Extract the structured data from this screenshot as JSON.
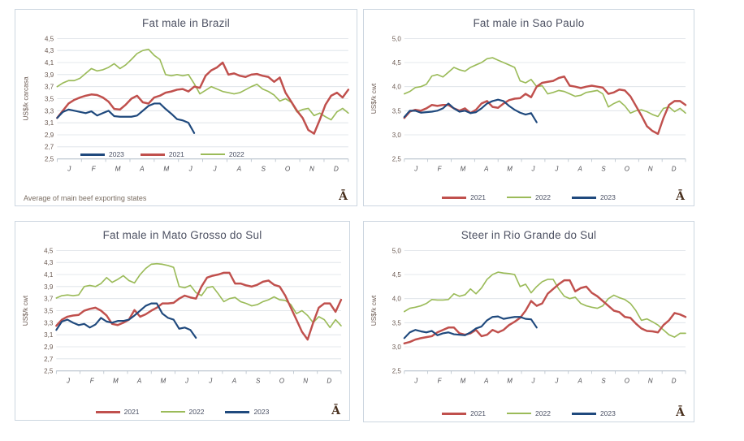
{
  "palette": {
    "2021": "#C0504D",
    "2022": "#9BBB59",
    "2023": "#1F497D"
  },
  "grid_color": "#dbe0e6",
  "axis_color": "#b7c1cb",
  "chart_data": [
    {
      "type": "line",
      "title": "Fat male in Brazil",
      "ylabel": "US$/k carcasa",
      "note": "Average  of main beef exporting states",
      "logo": "Ā",
      "months": [
        "J",
        "F",
        "M",
        "A",
        "M",
        "J",
        "J",
        "A",
        "S",
        "O",
        "N",
        "D"
      ],
      "ylim": [
        2.5,
        4.5
      ],
      "ytick_values": [
        2.5,
        2.7,
        2.9,
        3.1,
        3.3,
        3.5,
        3.7,
        3.9,
        4.1,
        4.3,
        4.5
      ],
      "ytick_labels": [
        "2,5",
        "2,7",
        "2,9",
        "3,1",
        "3,3",
        "3,5",
        "3,7",
        "3,9",
        "4,1",
        "4,3",
        "4,5"
      ],
      "legend": [
        "2023",
        "2021",
        "2022"
      ],
      "legend_position": "inside-bottom",
      "x_count": 52,
      "series": [
        {
          "name": "2022",
          "values": [
            3.7,
            3.76,
            3.8,
            3.8,
            3.84,
            3.92,
            4.0,
            3.96,
            3.98,
            4.02,
            4.08,
            4.0,
            4.06,
            4.15,
            4.25,
            4.3,
            4.32,
            4.22,
            4.15,
            3.9,
            3.88,
            3.9,
            3.88,
            3.9,
            3.75,
            3.58,
            3.64,
            3.7,
            3.66,
            3.62,
            3.6,
            3.58,
            3.6,
            3.65,
            3.7,
            3.74,
            3.66,
            3.62,
            3.56,
            3.46,
            3.5,
            3.44,
            3.28,
            3.32,
            3.34,
            3.22,
            3.26,
            3.2,
            3.15,
            3.28,
            3.34,
            3.26
          ]
        },
        {
          "name": "2021",
          "values": [
            3.18,
            3.3,
            3.42,
            3.48,
            3.52,
            3.55,
            3.57,
            3.56,
            3.52,
            3.45,
            3.33,
            3.32,
            3.4,
            3.5,
            3.55,
            3.44,
            3.42,
            3.52,
            3.55,
            3.6,
            3.62,
            3.65,
            3.66,
            3.62,
            3.7,
            3.68,
            3.88,
            3.97,
            4.02,
            4.1,
            3.9,
            3.92,
            3.88,
            3.86,
            3.9,
            3.91,
            3.88,
            3.86,
            3.78,
            3.85,
            3.6,
            3.45,
            3.3,
            3.18,
            2.98,
            2.92,
            3.15,
            3.4,
            3.55,
            3.6,
            3.52,
            3.65
          ]
        },
        {
          "name": "2023",
          "values": [
            3.18,
            3.28,
            3.32,
            3.3,
            3.28,
            3.26,
            3.29,
            3.22,
            3.26,
            3.3,
            3.21,
            3.2,
            3.2,
            3.2,
            3.22,
            3.3,
            3.38,
            3.42,
            3.42,
            3.33,
            3.25,
            3.16,
            3.14,
            3.1,
            2.93
          ]
        }
      ]
    },
    {
      "type": "line",
      "title": "Fat male in Sao Paulo",
      "ylabel": "US$/k cwt",
      "logo": "Ā",
      "months": [
        "J",
        "F",
        "M",
        "A",
        "M",
        "J",
        "J",
        "A",
        "S",
        "O",
        "N",
        "D"
      ],
      "ylim": [
        2.5,
        5.0
      ],
      "ytick_values": [
        2.5,
        3.0,
        3.5,
        4.0,
        4.5,
        5.0
      ],
      "ytick_labels": [
        "2,5",
        "3,0",
        "3,5",
        "4,0",
        "4,5",
        "5,0"
      ],
      "legend": [
        "2021",
        "2022",
        "2023"
      ],
      "legend_position": "below",
      "x_count": 52,
      "series": [
        {
          "name": "2022",
          "values": [
            3.85,
            3.9,
            3.98,
            4.0,
            4.05,
            4.22,
            4.25,
            4.2,
            4.3,
            4.4,
            4.35,
            4.32,
            4.4,
            4.45,
            4.5,
            4.58,
            4.6,
            4.55,
            4.5,
            4.45,
            4.4,
            4.12,
            4.08,
            4.15,
            4.0,
            4.02,
            3.85,
            3.88,
            3.92,
            3.9,
            3.85,
            3.8,
            3.82,
            3.88,
            3.9,
            3.92,
            3.85,
            3.58,
            3.65,
            3.7,
            3.6,
            3.45,
            3.5,
            3.52,
            3.48,
            3.42,
            3.38,
            3.55,
            3.58,
            3.48,
            3.55,
            3.45
          ]
        },
        {
          "name": "2021",
          "values": [
            3.35,
            3.48,
            3.52,
            3.5,
            3.55,
            3.62,
            3.6,
            3.62,
            3.62,
            3.55,
            3.5,
            3.55,
            3.45,
            3.52,
            3.65,
            3.7,
            3.58,
            3.56,
            3.65,
            3.72,
            3.75,
            3.76,
            3.85,
            3.78,
            4.0,
            4.08,
            4.1,
            4.12,
            4.18,
            4.21,
            4.02,
            4.0,
            3.97,
            4.0,
            4.02,
            4.0,
            3.98,
            3.85,
            3.88,
            3.94,
            3.92,
            3.8,
            3.6,
            3.4,
            3.18,
            3.08,
            3.02,
            3.35,
            3.62,
            3.7,
            3.7,
            3.62
          ]
        },
        {
          "name": "2023",
          "values": [
            3.37,
            3.5,
            3.5,
            3.46,
            3.47,
            3.48,
            3.5,
            3.55,
            3.65,
            3.55,
            3.48,
            3.5,
            3.45,
            3.47,
            3.55,
            3.65,
            3.7,
            3.73,
            3.7,
            3.6,
            3.52,
            3.46,
            3.42,
            3.45,
            3.26
          ]
        }
      ]
    },
    {
      "type": "line",
      "title": "Fat male in Mato Grosso do Sul",
      "ylabel": "US$/k cwt",
      "logo": "Ā",
      "months": [
        "J",
        "F",
        "M",
        "A",
        "M",
        "J",
        "J",
        "A",
        "S",
        "O",
        "N",
        "D"
      ],
      "ylim": [
        2.5,
        4.5
      ],
      "ytick_values": [
        2.5,
        2.7,
        2.9,
        3.1,
        3.3,
        3.5,
        3.7,
        3.9,
        4.1,
        4.3,
        4.5
      ],
      "ytick_labels": [
        "2,5",
        "2,7",
        "2,9",
        "3,1",
        "3,3",
        "3,5",
        "3,7",
        "3,9",
        "4,1",
        "4,3",
        "4,5"
      ],
      "legend": [
        "2021",
        "2022",
        "2023"
      ],
      "legend_position": "below",
      "x_count": 52,
      "series": [
        {
          "name": "2022",
          "values": [
            3.71,
            3.75,
            3.76,
            3.75,
            3.76,
            3.9,
            3.92,
            3.9,
            3.95,
            4.05,
            3.97,
            4.02,
            4.08,
            4.0,
            3.96,
            4.1,
            4.2,
            4.27,
            4.28,
            4.27,
            4.25,
            4.22,
            3.9,
            3.88,
            3.92,
            3.8,
            3.75,
            3.88,
            3.9,
            3.78,
            3.65,
            3.7,
            3.72,
            3.65,
            3.62,
            3.58,
            3.6,
            3.65,
            3.68,
            3.73,
            3.68,
            3.67,
            3.6,
            3.45,
            3.5,
            3.42,
            3.3,
            3.4,
            3.35,
            3.22,
            3.35,
            3.25
          ]
        },
        {
          "name": "2021",
          "values": [
            3.25,
            3.35,
            3.4,
            3.42,
            3.43,
            3.5,
            3.53,
            3.55,
            3.5,
            3.42,
            3.28,
            3.26,
            3.3,
            3.35,
            3.51,
            3.4,
            3.44,
            3.5,
            3.55,
            3.62,
            3.62,
            3.63,
            3.7,
            3.75,
            3.72,
            3.7,
            3.9,
            4.05,
            4.08,
            4.1,
            4.13,
            4.13,
            3.95,
            3.95,
            3.92,
            3.9,
            3.93,
            3.98,
            4.0,
            3.93,
            3.9,
            3.75,
            3.55,
            3.35,
            3.15,
            3.02,
            3.3,
            3.55,
            3.62,
            3.62,
            3.48,
            3.68
          ]
        },
        {
          "name": "2023",
          "values": [
            3.18,
            3.32,
            3.35,
            3.3,
            3.26,
            3.28,
            3.22,
            3.27,
            3.38,
            3.32,
            3.3,
            3.33,
            3.33,
            3.35,
            3.42,
            3.5,
            3.58,
            3.62,
            3.62,
            3.45,
            3.38,
            3.35,
            3.2,
            3.22,
            3.18,
            3.05
          ]
        }
      ]
    },
    {
      "type": "line",
      "title": "Steer  in Rio Grande do Sul",
      "ylabel": "US$/k cwt",
      "logo": "Ā",
      "months": [
        "J",
        "F",
        "M",
        "A",
        "M",
        "J",
        "J",
        "A",
        "S",
        "O",
        "N",
        "D"
      ],
      "ylim": [
        2.5,
        5.0
      ],
      "ytick_values": [
        2.5,
        3.0,
        3.5,
        4.0,
        4.5,
        5.0
      ],
      "ytick_labels": [
        "2,5",
        "3,0",
        "3,5",
        "4,0",
        "4,5",
        "5,0"
      ],
      "legend": [
        "2021",
        "2022",
        "2023"
      ],
      "legend_position": "below",
      "x_count": 52,
      "series": [
        {
          "name": "2022",
          "values": [
            3.73,
            3.8,
            3.82,
            3.85,
            3.9,
            3.98,
            3.97,
            3.97,
            3.98,
            4.1,
            4.05,
            4.08,
            4.2,
            4.1,
            4.22,
            4.4,
            4.5,
            4.55,
            4.53,
            4.52,
            4.5,
            4.25,
            4.3,
            4.12,
            4.25,
            4.35,
            4.4,
            4.4,
            4.2,
            4.05,
            4.0,
            4.03,
            3.9,
            3.85,
            3.82,
            3.8,
            3.85,
            4.0,
            4.07,
            4.02,
            3.98,
            3.9,
            3.75,
            3.55,
            3.58,
            3.52,
            3.45,
            3.35,
            3.25,
            3.2,
            3.28,
            3.28
          ]
        },
        {
          "name": "2021",
          "values": [
            3.07,
            3.1,
            3.15,
            3.18,
            3.2,
            3.22,
            3.3,
            3.35,
            3.4,
            3.4,
            3.28,
            3.25,
            3.28,
            3.35,
            3.22,
            3.25,
            3.35,
            3.3,
            3.35,
            3.45,
            3.52,
            3.6,
            3.75,
            3.95,
            3.85,
            3.9,
            4.1,
            4.2,
            4.3,
            4.38,
            4.38,
            4.15,
            4.22,
            4.25,
            4.12,
            4.05,
            3.95,
            3.85,
            3.75,
            3.72,
            3.62,
            3.6,
            3.48,
            3.38,
            3.33,
            3.32,
            3.3,
            3.45,
            3.55,
            3.7,
            3.67,
            3.62
          ]
        },
        {
          "name": "2023",
          "values": [
            3.18,
            3.3,
            3.35,
            3.32,
            3.3,
            3.33,
            3.24,
            3.28,
            3.3,
            3.26,
            3.25,
            3.24,
            3.3,
            3.38,
            3.42,
            3.55,
            3.62,
            3.63,
            3.58,
            3.6,
            3.62,
            3.62,
            3.58,
            3.57,
            3.4
          ]
        }
      ]
    }
  ]
}
